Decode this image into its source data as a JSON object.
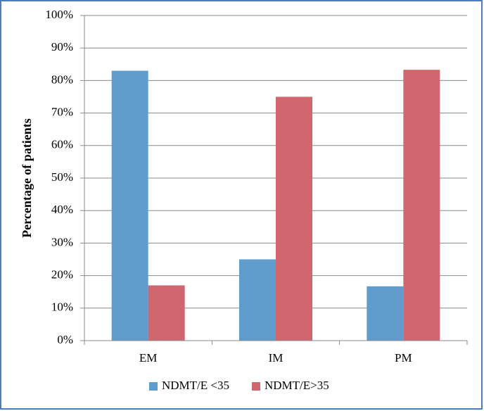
{
  "chart_data": {
    "type": "bar",
    "y_label": "Percentage of patients",
    "categories": [
      "EM",
      "IM",
      "PM"
    ],
    "series": [
      {
        "name": "NDMT/E <35",
        "color": "#5f9bcb",
        "values": [
          83,
          25,
          16.7
        ]
      },
      {
        "name": "NDMT/E>35",
        "color": "#d0676f",
        "values": [
          17,
          75,
          83.3
        ]
      }
    ],
    "ylim": [
      0,
      100
    ],
    "yticks": [
      {
        "value": 0,
        "label": "0%"
      },
      {
        "value": 10,
        "label": "10%"
      },
      {
        "value": 20,
        "label": "20%"
      },
      {
        "value": 30,
        "label": "30%"
      },
      {
        "value": 40,
        "label": "40%"
      },
      {
        "value": 50,
        "label": "50%"
      },
      {
        "value": 60,
        "label": "60%"
      },
      {
        "value": 70,
        "label": "70%"
      },
      {
        "value": 80,
        "label": "80%"
      },
      {
        "value": 90,
        "label": "90%"
      },
      {
        "value": 100,
        "label": "100%"
      }
    ],
    "grid": true,
    "legend": "bottom"
  }
}
